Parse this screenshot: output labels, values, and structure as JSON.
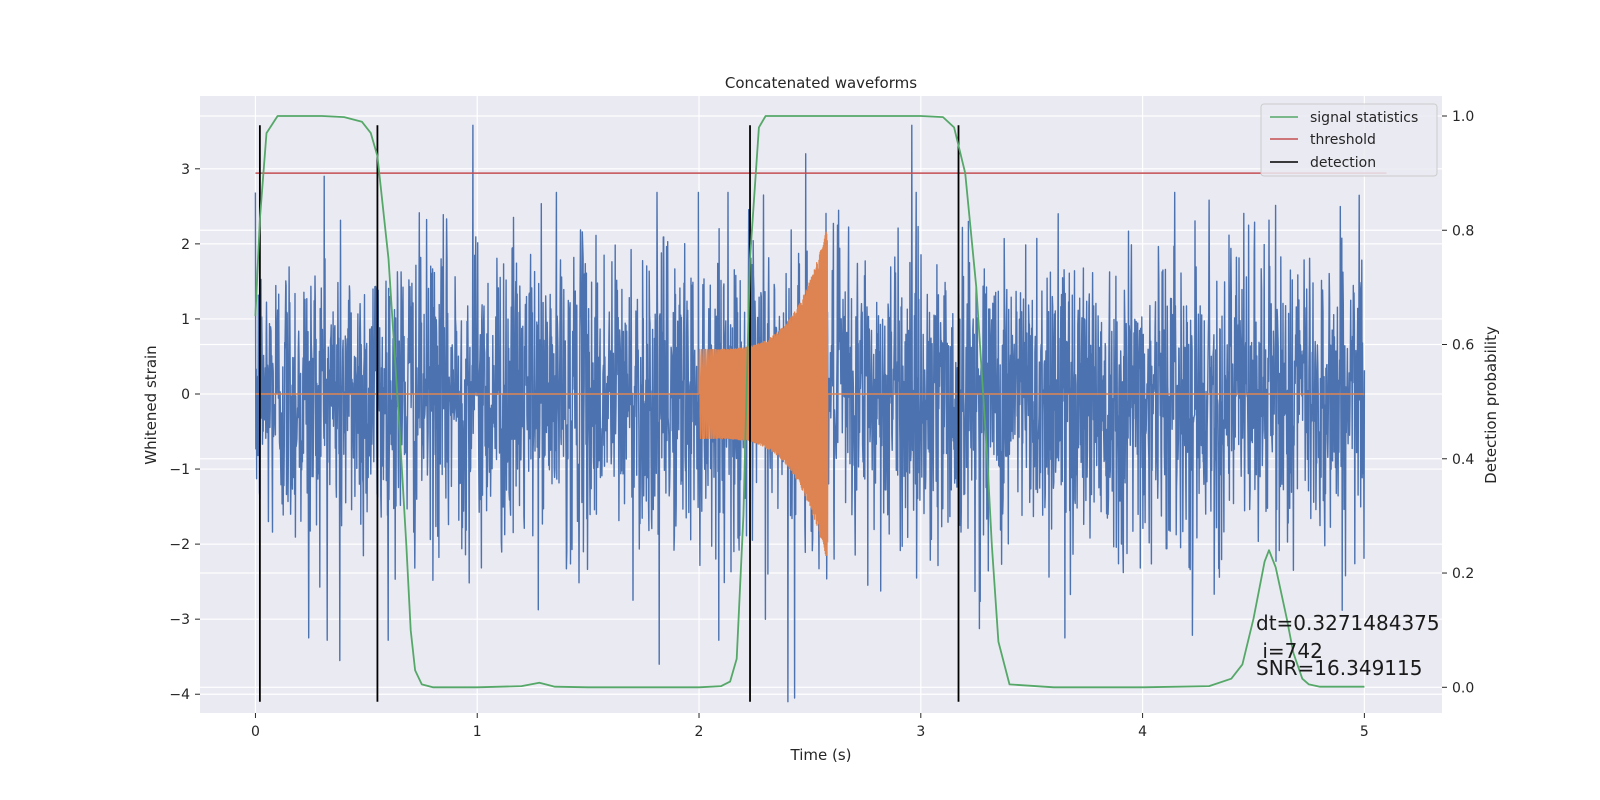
{
  "chart_data": {
    "type": "line",
    "title": "Concatenated waveforms",
    "xlabel": "Time (s)",
    "ylabel": "Whitened strain",
    "y2label": "Detection probability",
    "xlim": [
      -0.25,
      5.35
    ],
    "ylim": [
      -4.25,
      3.97
    ],
    "y2lim": [
      -0.045,
      1.035
    ],
    "xticks": [
      0,
      1,
      2,
      3,
      4,
      5
    ],
    "yticks": [
      -4,
      -3,
      -2,
      -1,
      0,
      1,
      2,
      3
    ],
    "y2ticks": [
      0.0,
      0.2,
      0.4,
      0.6,
      0.8,
      1.0
    ],
    "grid": true,
    "legend_position": "top-right",
    "colors": {
      "plot_bg": "#eaeaf2",
      "grid": "#ffffff",
      "strain": "#4c72b0",
      "template": "#dd8452",
      "stat": "#55a868",
      "threshold": "#c44e52",
      "detection": "#000000"
    },
    "legend": [
      {
        "label": "signal statistics",
        "color": "#55a868"
      },
      {
        "label": "threshold",
        "color": "#c44e52"
      },
      {
        "label": "detection",
        "color": "#000000"
      }
    ],
    "noise": {
      "x_range": [
        0,
        5
      ],
      "y_min": -4.1,
      "y_max": 3.58,
      "peaks_high": [
        {
          "x": 0.31,
          "y": 2.9
        },
        {
          "x": 0.98,
          "y": 3.58
        },
        {
          "x": 2.29,
          "y": 2.65
        },
        {
          "x": 2.48,
          "y": 3.2
        },
        {
          "x": 2.96,
          "y": 3.58
        },
        {
          "x": 3.62,
          "y": 2.4
        }
      ],
      "peaks_low": [
        {
          "x": 0.24,
          "y": -3.25
        },
        {
          "x": 0.38,
          "y": -3.55
        },
        {
          "x": 1.82,
          "y": -3.6
        },
        {
          "x": 2.4,
          "y": -4.1
        },
        {
          "x": 2.43,
          "y": -4.05
        },
        {
          "x": 3.65,
          "y": -3.25
        }
      ]
    },
    "template": {
      "flat_y": 0,
      "chirp_start": 2.0,
      "chirp_end": 2.58,
      "start_amplitude": 0.6,
      "end_amplitude": 2.25
    },
    "signal_statistics": {
      "x": [
        0.0,
        0.02,
        0.05,
        0.1,
        0.2,
        0.3,
        0.4,
        0.48,
        0.52,
        0.55,
        0.6,
        0.65,
        0.68,
        0.7,
        0.72,
        0.75,
        0.8,
        1.0,
        1.2,
        1.28,
        1.3,
        1.35,
        1.5,
        2.0,
        2.1,
        2.14,
        2.17,
        2.2,
        2.23,
        2.27,
        2.3,
        2.5,
        2.8,
        3.0,
        3.1,
        3.15,
        3.2,
        3.25,
        3.3,
        3.32,
        3.35,
        3.4,
        3.6,
        4.0,
        4.3,
        4.4,
        4.45,
        4.5,
        4.55,
        4.57,
        4.6,
        4.65,
        4.68,
        4.72,
        4.75,
        4.8,
        5.0
      ],
      "y": [
        0.65,
        0.82,
        0.97,
        1.0,
        1.0,
        1.0,
        0.998,
        0.99,
        0.97,
        0.93,
        0.75,
        0.45,
        0.25,
        0.1,
        0.03,
        0.005,
        0.0,
        0.0,
        0.002,
        0.008,
        0.006,
        0.001,
        0.0,
        0.0,
        0.002,
        0.01,
        0.05,
        0.3,
        0.75,
        0.98,
        1.0,
        1.0,
        1.0,
        1.0,
        0.998,
        0.98,
        0.9,
        0.7,
        0.4,
        0.25,
        0.08,
        0.005,
        0.0,
        0.0,
        0.002,
        0.015,
        0.04,
        0.12,
        0.22,
        0.24,
        0.21,
        0.12,
        0.06,
        0.015,
        0.005,
        0.001,
        0.001
      ]
    },
    "threshold": {
      "value": 0.9,
      "x_range": [
        0,
        5.1
      ]
    },
    "detections": [
      0.02,
      0.55,
      2.23,
      3.17
    ],
    "detection_y_range": [
      -4.1,
      3.58
    ],
    "annotations": [
      "dt=0.3271484375",
      " i=742",
      "SNR=16.349115"
    ]
  }
}
